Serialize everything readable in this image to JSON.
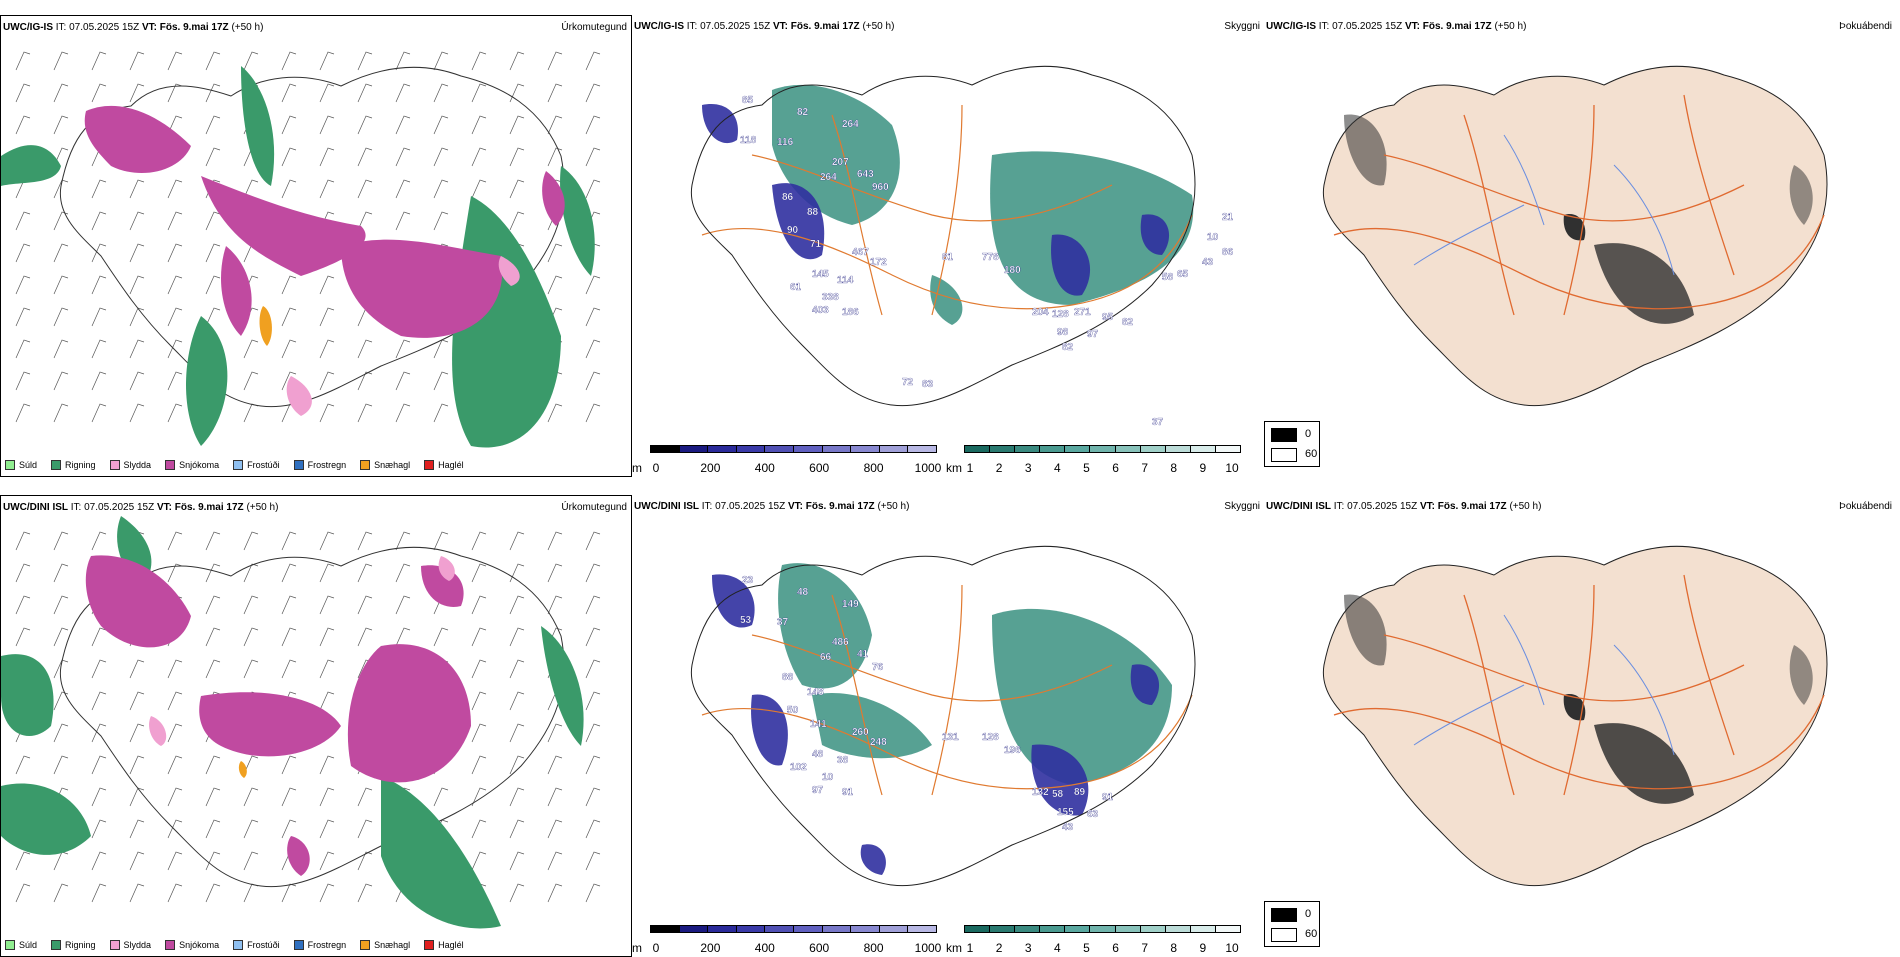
{
  "rows": [
    {
      "precip": {
        "model_prefix": "UWC/IG-IS",
        "it_text": " IT: 07.05.2025 15Z ",
        "vt_label": "VT:",
        "vt_value": " Fös. 9.mai 17Z ",
        "lead": "(+50 h)",
        "title": "Úrkomutegund"
      },
      "vis": {
        "model_prefix": "UWC/IG-IS",
        "it_text": " IT: 07.05.2025 15Z ",
        "vt_label": "VT:",
        "vt_value": " Fös. 9.mai 17Z ",
        "lead": "(+50 h)",
        "title": "Skyggni",
        "labels": [
          "85",
          "82",
          "264",
          "118",
          "116",
          "207",
          "643",
          "960",
          "264",
          "86",
          "88",
          "90",
          "71",
          "467",
          "172",
          "81",
          "778",
          "180",
          "145",
          "114",
          "338",
          "61",
          "403",
          "186",
          "204",
          "128",
          "271",
          "95",
          "98",
          "97",
          "82",
          "82",
          "58",
          "72",
          "83",
          "37",
          "43",
          "21",
          "10",
          "86",
          "65"
        ]
      },
      "cloud": {
        "model_prefix": "UWC/IG-IS",
        "it_text": " IT: 07.05.2025 15Z ",
        "vt_label": "VT:",
        "vt_value": " Fös. 9.mai 17Z ",
        "lead": "(+50 h)",
        "title": "Þokuábendi"
      }
    },
    {
      "precip": {
        "model_prefix": "UWC/DINI ISL",
        "it_text": " IT: 07.05.2025 15Z ",
        "vt_label": "VT:",
        "vt_value": " Fös. 9.mai 17Z ",
        "lead": "(+50 h)",
        "title": "Úrkomutegund"
      },
      "vis": {
        "model_prefix": "UWC/DINI ISL",
        "it_text": " IT: 07.05.2025 15Z ",
        "vt_label": "VT:",
        "vt_value": " Fös. 9.mai 17Z ",
        "lead": "(+50 h)",
        "title": "Skyggni",
        "labels": [
          "23",
          "48",
          "149",
          "53",
          "37",
          "486",
          "41",
          "76",
          "66",
          "88",
          "148",
          "50",
          "141",
          "260",
          "248",
          "131",
          "128",
          "196",
          "48",
          "38",
          "10",
          "102",
          "97",
          "91",
          "132",
          "58",
          "89",
          "91",
          "155",
          "63",
          "43"
        ]
      },
      "cloud": {
        "model_prefix": "UWC/DINI ISL",
        "it_text": " IT: 07.05.2025 15Z ",
        "vt_label": "VT:",
        "vt_value": " Fös. 9.mai 17Z ",
        "lead": "(+50 h)",
        "title": "Þokuábendi"
      }
    }
  ],
  "precip_legend": [
    {
      "label": "Súld",
      "color": "#90ee90"
    },
    {
      "label": "Rigning",
      "color": "#3a9a6a"
    },
    {
      "label": "Slydda",
      "color": "#f0a0d0"
    },
    {
      "label": "Snjókoma",
      "color": "#c04aa0"
    },
    {
      "label": "Frostúði",
      "color": "#90c0f0"
    },
    {
      "label": "Frostregn",
      "color": "#3070c0"
    },
    {
      "label": "Snæhagl",
      "color": "#f0a020"
    },
    {
      "label": "Haglél",
      "color": "#e02020"
    }
  ],
  "height_bar": {
    "unit": "m",
    "ticks": [
      "0",
      "200",
      "400",
      "600",
      "800",
      "1000"
    ],
    "colors": [
      "#000000",
      "#1a1a80",
      "#2a2a9a",
      "#3a3aa8",
      "#5050b4",
      "#6060c0",
      "#7878c8",
      "#8888d0",
      "#a0a0d8",
      "#b8b8e4"
    ]
  },
  "vis_bar": {
    "unit": "km",
    "ticks": [
      "1",
      "2",
      "3",
      "4",
      "5",
      "6",
      "7",
      "8",
      "9",
      "10"
    ],
    "colors": [
      "#1a6a60",
      "#2a7a70",
      "#3a8a80",
      "#4a9a90",
      "#5aa8a0",
      "#70b4ac",
      "#88c2ba",
      "#a0d0c8",
      "#bcdcd8",
      "#d8ecea",
      "#f2f8f8"
    ]
  },
  "cloud_legend": {
    "min_label": "0",
    "max_label": "60"
  },
  "colors": {
    "rain": "#3a9a6a",
    "snow": "#c04aa0",
    "sleet": "#f0a0d0",
    "ice_pellets": "#f0a020",
    "vis_teal": "#3a9080",
    "vis_blue": "#3030a0",
    "road": "#e07a30",
    "land_tint": "#f3e0d0",
    "fog_gray": "#303030",
    "river": "#6a8ee0"
  }
}
